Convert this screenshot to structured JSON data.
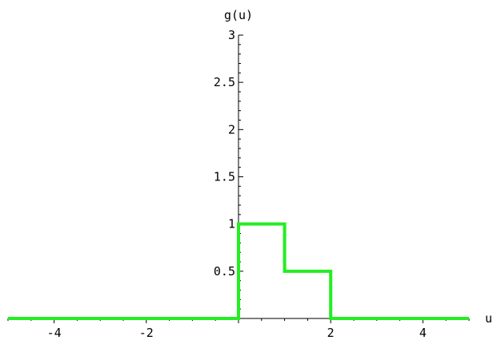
{
  "chart_data": {
    "type": "line",
    "title": "",
    "xlabel": "u",
    "ylabel": "g(u)",
    "xlim": [
      -5,
      5
    ],
    "ylim": [
      0,
      3
    ],
    "x_ticks": [
      -4,
      -2,
      2,
      4
    ],
    "x_tick_labels": [
      "-4",
      "-2",
      "2",
      "4"
    ],
    "y_ticks": [
      0.5,
      1,
      1.5,
      2,
      2.5,
      3
    ],
    "y_tick_labels": [
      "0.5",
      "1",
      "1.5",
      "2",
      "2.5",
      "3"
    ],
    "grid": false,
    "series": [
      {
        "color": "#22ee22",
        "x": [
          -5,
          0,
          0,
          1,
          1,
          2,
          2,
          5
        ],
        "y": [
          0,
          0,
          1,
          1,
          0.5,
          0.5,
          0,
          0
        ]
      }
    ]
  }
}
